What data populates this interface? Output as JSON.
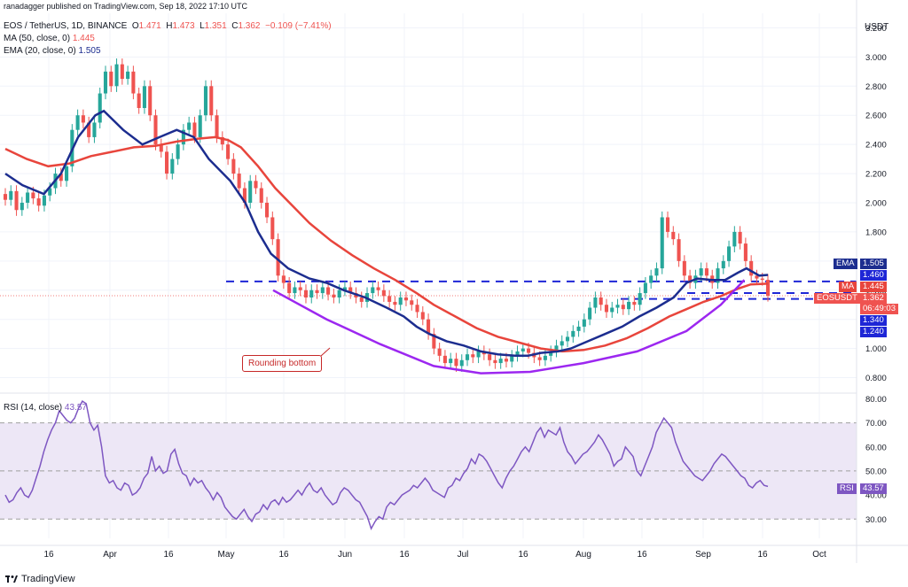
{
  "header": {
    "published": "ranadagger published on TradingView.com, Sep 18, 2022 17:10 UTC",
    "symbol": "EOS / TetherUS, 1D, BINANCE",
    "o_label": "O",
    "o_value": "1.471",
    "h_label": "H",
    "h_value": "1.473",
    "l_label": "L",
    "l_value": "1.351",
    "c_label": "C",
    "c_value": "1.362",
    "change": "−0.109 (−7.41%)",
    "ma_label": "MA (50, close, 0)",
    "ma_value": "1.445",
    "ema_label": "EMA (20, close, 0)",
    "ema_value": "1.505",
    "rsi_label": "RSI (14, close)",
    "rsi_value": "43.57"
  },
  "footer": {
    "brand": "TradingView"
  },
  "annotation": "Rounding bottom",
  "price_scale": {
    "unit": "USDT",
    "ticks": [
      "3.200",
      "3.000",
      "2.800",
      "2.600",
      "2.400",
      "2.200",
      "2.000",
      "1.800",
      "1.600",
      "1.400",
      "1.200",
      "1.000",
      "0.800"
    ],
    "tags": {
      "ema_name": "EMA",
      "ema_value": "1.505",
      "level_1460": "1.460",
      "ma_name": "MA",
      "ma_value": "1.445",
      "symbol_name": "EOSUSDT",
      "price": "1.362",
      "countdown": "06:49:03",
      "level_1340": "1.340",
      "level_1240": "1.240"
    }
  },
  "rsi_scale": {
    "ticks": [
      "80.00",
      "70.00",
      "60.00",
      "50.00",
      "40.00",
      "30.00"
    ],
    "tag_name": "RSI",
    "tag_value": "43.57"
  },
  "time_axis": [
    "16",
    "Apr",
    "16",
    "May",
    "16",
    "Jun",
    "16",
    "Jul",
    "16",
    "Aug",
    "16",
    "Sep",
    "16",
    "Oct"
  ],
  "colors": {
    "up": "#26a69a",
    "down": "#ef5350",
    "ema": "#1c2d8f",
    "ma": "#e8453c",
    "level": "#1e26d6",
    "curve": "#9c27f0",
    "rsi": "#7e57c2",
    "rsi_band": "#ede7f6",
    "annotation": "#c62828"
  },
  "chart_data": {
    "type": "candlestick",
    "title": "EOS / TetherUS, 1D, BINANCE",
    "ylim": [
      0.7,
      3.3
    ],
    "horizontal_levels": [
      1.46,
      1.38,
      1.34
    ],
    "ema20_path": [
      [
        0,
        2.2
      ],
      [
        8,
        2.12
      ],
      [
        18,
        2.06
      ],
      [
        26,
        2.2
      ],
      [
        34,
        2.45
      ],
      [
        42,
        2.6
      ],
      [
        46,
        2.63
      ],
      [
        55,
        2.5
      ],
      [
        64,
        2.4
      ],
      [
        72,
        2.45
      ],
      [
        80,
        2.5
      ],
      [
        88,
        2.45
      ],
      [
        95,
        2.3
      ],
      [
        105,
        2.15
      ],
      [
        112,
        2.0
      ],
      [
        118,
        1.8
      ],
      [
        124,
        1.65
      ],
      [
        132,
        1.55
      ],
      [
        142,
        1.48
      ],
      [
        150,
        1.45
      ],
      [
        158,
        1.4
      ],
      [
        168,
        1.35
      ],
      [
        178,
        1.28
      ],
      [
        186,
        1.22
      ],
      [
        192,
        1.15
      ],
      [
        198,
        1.1
      ],
      [
        206,
        1.05
      ],
      [
        214,
        1.02
      ],
      [
        222,
        0.98
      ],
      [
        230,
        0.96
      ],
      [
        238,
        0.95
      ],
      [
        244,
        0.95
      ],
      [
        250,
        0.97
      ],
      [
        258,
        0.98
      ],
      [
        264,
        1.0
      ],
      [
        272,
        1.05
      ],
      [
        280,
        1.1
      ],
      [
        288,
        1.15
      ],
      [
        296,
        1.22
      ],
      [
        304,
        1.28
      ],
      [
        312,
        1.35
      ],
      [
        318,
        1.45
      ],
      [
        323,
        1.48
      ],
      [
        330,
        1.47
      ],
      [
        336,
        1.47
      ],
      [
        342,
        1.52
      ],
      [
        346,
        1.55
      ],
      [
        352,
        1.5
      ],
      [
        356,
        1.505
      ]
    ],
    "ma50_path": [
      [
        0,
        2.37
      ],
      [
        10,
        2.3
      ],
      [
        20,
        2.25
      ],
      [
        30,
        2.27
      ],
      [
        40,
        2.32
      ],
      [
        50,
        2.35
      ],
      [
        60,
        2.38
      ],
      [
        70,
        2.39
      ],
      [
        80,
        2.42
      ],
      [
        90,
        2.44
      ],
      [
        98,
        2.45
      ],
      [
        104,
        2.43
      ],
      [
        110,
        2.38
      ],
      [
        118,
        2.25
      ],
      [
        126,
        2.1
      ],
      [
        134,
        1.98
      ],
      [
        142,
        1.86
      ],
      [
        152,
        1.74
      ],
      [
        162,
        1.64
      ],
      [
        172,
        1.55
      ],
      [
        182,
        1.47
      ],
      [
        192,
        1.38
      ],
      [
        200,
        1.3
      ],
      [
        210,
        1.22
      ],
      [
        220,
        1.14
      ],
      [
        230,
        1.08
      ],
      [
        240,
        1.04
      ],
      [
        250,
        1.0
      ],
      [
        260,
        0.98
      ],
      [
        270,
        0.99
      ],
      [
        280,
        1.02
      ],
      [
        290,
        1.07
      ],
      [
        300,
        1.14
      ],
      [
        310,
        1.22
      ],
      [
        318,
        1.27
      ],
      [
        326,
        1.32
      ],
      [
        334,
        1.36
      ],
      [
        342,
        1.41
      ],
      [
        348,
        1.44
      ],
      [
        356,
        1.445
      ]
    ],
    "rounding_bottom_path": [
      [
        125,
        1.4
      ],
      [
        150,
        1.2
      ],
      [
        175,
        1.03
      ],
      [
        200,
        0.88
      ],
      [
        222,
        0.83
      ],
      [
        245,
        0.84
      ],
      [
        270,
        0.9
      ],
      [
        295,
        0.98
      ],
      [
        318,
        1.12
      ],
      [
        334,
        1.3
      ],
      [
        345,
        1.47
      ]
    ],
    "rsi_ylim": [
      22,
      82
    ],
    "rsi_values": [
      40,
      37,
      38,
      41,
      43,
      40,
      39,
      42,
      47,
      52,
      58,
      63,
      67,
      70,
      75,
      73,
      71,
      70,
      72,
      76,
      79,
      78,
      70,
      67,
      69,
      60,
      48,
      45,
      46,
      43,
      42,
      45,
      44,
      40,
      41,
      43,
      47,
      49,
      56,
      50,
      52,
      49,
      50,
      57,
      59,
      53,
      49,
      48,
      44,
      47,
      45,
      46,
      43,
      41,
      38,
      41,
      39,
      35,
      33,
      31,
      30,
      32,
      34,
      31,
      29,
      32,
      33,
      36,
      34,
      37,
      38,
      36,
      39,
      37,
      38,
      40,
      42,
      40,
      43,
      45,
      42,
      41,
      43,
      40,
      38,
      36,
      37,
      41,
      43,
      42,
      40,
      38,
      37,
      34,
      31,
      26,
      29,
      31,
      30,
      35,
      37,
      36,
      38,
      40,
      41,
      42,
      44,
      43,
      45,
      47,
      45,
      42,
      41,
      40,
      39,
      43,
      44,
      47,
      46,
      49,
      51,
      55,
      53,
      57,
      56,
      54,
      51,
      48,
      45,
      43,
      47,
      50,
      52,
      55,
      58,
      60,
      58,
      62,
      66,
      68,
      64,
      67,
      66,
      65,
      68,
      62,
      58,
      56,
      53,
      55,
      57,
      58,
      60,
      62,
      65,
      63,
      60,
      57,
      52,
      54,
      55,
      60,
      58,
      56,
      50,
      48,
      52,
      56,
      60,
      66,
      69,
      72,
      70,
      68,
      62,
      58,
      54,
      52,
      50,
      48,
      47,
      46,
      48,
      50,
      53,
      55,
      57,
      56,
      54,
      52,
      50,
      48,
      47,
      44,
      43,
      45,
      46,
      44,
      43.57
    ],
    "candles": [
      {
        "c": 2.02,
        "o": 2.06
      },
      {
        "c": 2.08,
        "o": 2.02
      },
      {
        "c": 1.95,
        "o": 2.08
      },
      {
        "c": 2.0,
        "o": 1.95
      },
      {
        "c": 2.07,
        "o": 2.0
      },
      {
        "c": 2.03,
        "o": 2.07
      },
      {
        "c": 1.98,
        "o": 2.03
      },
      {
        "c": 2.05,
        "o": 1.98
      },
      {
        "c": 2.1,
        "o": 2.05
      },
      {
        "c": 2.2,
        "o": 2.1
      },
      {
        "c": 2.15,
        "o": 2.2
      },
      {
        "c": 2.25,
        "o": 2.15
      },
      {
        "c": 2.5,
        "o": 2.25
      },
      {
        "c": 2.6,
        "o": 2.5
      },
      {
        "c": 2.55,
        "o": 2.6
      },
      {
        "c": 2.45,
        "o": 2.55
      },
      {
        "c": 2.55,
        "o": 2.45
      },
      {
        "c": 2.75,
        "o": 2.55
      },
      {
        "c": 2.9,
        "o": 2.75
      },
      {
        "c": 2.8,
        "o": 2.9
      },
      {
        "c": 2.95,
        "o": 2.8
      },
      {
        "c": 2.85,
        "o": 2.95
      },
      {
        "c": 2.9,
        "o": 2.85
      },
      {
        "c": 2.75,
        "o": 2.9
      },
      {
        "c": 2.65,
        "o": 2.75
      },
      {
        "c": 2.8,
        "o": 2.65
      },
      {
        "c": 2.6,
        "o": 2.8
      },
      {
        "c": 2.4,
        "o": 2.6
      },
      {
        "c": 2.35,
        "o": 2.4
      },
      {
        "c": 2.2,
        "o": 2.35
      },
      {
        "c": 2.3,
        "o": 2.2
      },
      {
        "c": 2.4,
        "o": 2.3
      },
      {
        "c": 2.5,
        "o": 2.4
      },
      {
        "c": 2.55,
        "o": 2.5
      },
      {
        "c": 2.45,
        "o": 2.55
      },
      {
        "c": 2.6,
        "o": 2.45
      },
      {
        "c": 2.8,
        "o": 2.6
      },
      {
        "c": 2.6,
        "o": 2.8
      },
      {
        "c": 2.45,
        "o": 2.6
      },
      {
        "c": 2.4,
        "o": 2.45
      },
      {
        "c": 2.3,
        "o": 2.4
      },
      {
        "c": 2.2,
        "o": 2.3
      },
      {
        "c": 2.1,
        "o": 2.2
      },
      {
        "c": 2.0,
        "o": 2.1
      },
      {
        "c": 2.15,
        "o": 2.0
      },
      {
        "c": 2.1,
        "o": 2.15
      },
      {
        "c": 2.0,
        "o": 2.1
      },
      {
        "c": 1.9,
        "o": 2.0
      },
      {
        "c": 1.75,
        "o": 1.9
      },
      {
        "c": 1.5,
        "o": 1.75
      },
      {
        "c": 1.45,
        "o": 1.5
      },
      {
        "c": 1.38,
        "o": 1.45
      },
      {
        "c": 1.42,
        "o": 1.38
      },
      {
        "c": 1.4,
        "o": 1.42
      },
      {
        "c": 1.35,
        "o": 1.4
      },
      {
        "c": 1.4,
        "o": 1.35
      },
      {
        "c": 1.38,
        "o": 1.4
      },
      {
        "c": 1.42,
        "o": 1.38
      },
      {
        "c": 1.37,
        "o": 1.42
      },
      {
        "c": 1.35,
        "o": 1.37
      },
      {
        "c": 1.4,
        "o": 1.35
      },
      {
        "c": 1.42,
        "o": 1.4
      },
      {
        "c": 1.38,
        "o": 1.42
      },
      {
        "c": 1.35,
        "o": 1.38
      },
      {
        "c": 1.32,
        "o": 1.35
      },
      {
        "c": 1.38,
        "o": 1.32
      },
      {
        "c": 1.42,
        "o": 1.38
      },
      {
        "c": 1.4,
        "o": 1.42
      },
      {
        "c": 1.36,
        "o": 1.4
      },
      {
        "c": 1.32,
        "o": 1.36
      },
      {
        "c": 1.3,
        "o": 1.32
      },
      {
        "c": 1.35,
        "o": 1.3
      },
      {
        "c": 1.33,
        "o": 1.35
      },
      {
        "c": 1.3,
        "o": 1.33
      },
      {
        "c": 1.25,
        "o": 1.3
      },
      {
        "c": 1.2,
        "o": 1.25
      },
      {
        "c": 1.1,
        "o": 1.2
      },
      {
        "c": 1.0,
        "o": 1.1
      },
      {
        "c": 0.95,
        "o": 1.0
      },
      {
        "c": 0.9,
        "o": 0.95
      },
      {
        "c": 0.93,
        "o": 0.9
      },
      {
        "c": 0.88,
        "o": 0.93
      },
      {
        "c": 0.92,
        "o": 0.88
      },
      {
        "c": 0.96,
        "o": 0.92
      },
      {
        "c": 0.94,
        "o": 0.96
      },
      {
        "c": 0.98,
        "o": 0.94
      },
      {
        "c": 0.96,
        "o": 0.98
      },
      {
        "c": 0.92,
        "o": 0.96
      },
      {
        "c": 0.9,
        "o": 0.92
      },
      {
        "c": 0.93,
        "o": 0.9
      },
      {
        "c": 0.91,
        "o": 0.93
      },
      {
        "c": 0.95,
        "o": 0.91
      },
      {
        "c": 0.98,
        "o": 0.95
      },
      {
        "c": 1.0,
        "o": 0.98
      },
      {
        "c": 0.97,
        "o": 1.0
      },
      {
        "c": 0.94,
        "o": 0.97
      },
      {
        "c": 0.92,
        "o": 0.94
      },
      {
        "c": 0.95,
        "o": 0.92
      },
      {
        "c": 0.98,
        "o": 0.95
      },
      {
        "c": 1.02,
        "o": 0.98
      },
      {
        "c": 1.05,
        "o": 1.02
      },
      {
        "c": 1.08,
        "o": 1.05
      },
      {
        "c": 1.12,
        "o": 1.08
      },
      {
        "c": 1.15,
        "o": 1.12
      },
      {
        "c": 1.2,
        "o": 1.15
      },
      {
        "c": 1.28,
        "o": 1.2
      },
      {
        "c": 1.35,
        "o": 1.28
      },
      {
        "c": 1.3,
        "o": 1.35
      },
      {
        "c": 1.25,
        "o": 1.3
      },
      {
        "c": 1.28,
        "o": 1.25
      },
      {
        "c": 1.3,
        "o": 1.28
      },
      {
        "c": 1.27,
        "o": 1.3
      },
      {
        "c": 1.32,
        "o": 1.27
      },
      {
        "c": 1.3,
        "o": 1.32
      },
      {
        "c": 1.38,
        "o": 1.3
      },
      {
        "c": 1.45,
        "o": 1.38
      },
      {
        "c": 1.5,
        "o": 1.45
      },
      {
        "c": 1.55,
        "o": 1.5
      },
      {
        "c": 1.9,
        "o": 1.55
      },
      {
        "c": 1.8,
        "o": 1.9
      },
      {
        "c": 1.75,
        "o": 1.8
      },
      {
        "c": 1.6,
        "o": 1.75
      },
      {
        "c": 1.5,
        "o": 1.6
      },
      {
        "c": 1.45,
        "o": 1.5
      },
      {
        "c": 1.5,
        "o": 1.45
      },
      {
        "c": 1.55,
        "o": 1.5
      },
      {
        "c": 1.5,
        "o": 1.55
      },
      {
        "c": 1.45,
        "o": 1.5
      },
      {
        "c": 1.55,
        "o": 1.45
      },
      {
        "c": 1.6,
        "o": 1.55
      },
      {
        "c": 1.7,
        "o": 1.6
      },
      {
        "c": 1.8,
        "o": 1.7
      },
      {
        "c": 1.72,
        "o": 1.8
      },
      {
        "c": 1.6,
        "o": 1.72
      },
      {
        "c": 1.5,
        "o": 1.6
      },
      {
        "c": 1.48,
        "o": 1.5
      },
      {
        "c": 1.471,
        "o": 1.48
      },
      {
        "c": 1.362,
        "o": 1.471
      }
    ]
  }
}
